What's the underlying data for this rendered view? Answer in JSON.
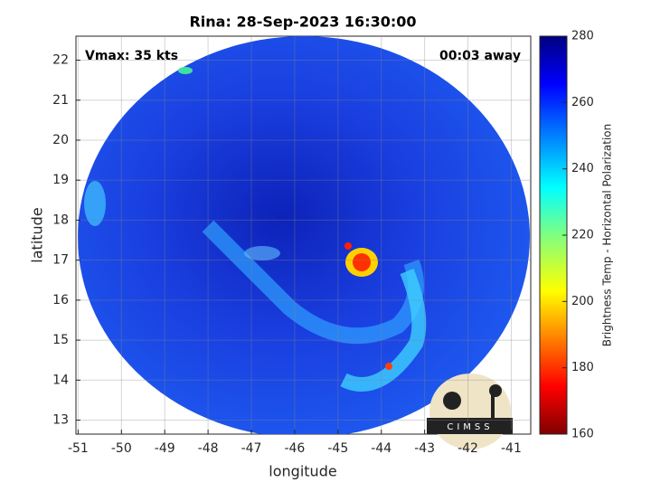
{
  "chart_data": {
    "type": "image",
    "title": "Rina: 28-Sep-2023 16:30:00",
    "annotations": [
      "Vmax: 35 kts",
      "00:03 away"
    ],
    "xlabel": "longitude",
    "ylabel": "latitude",
    "xlim": [
      -51.05,
      -40.55
    ],
    "xticks": [
      -51,
      -50,
      -49,
      -48,
      -47,
      -46,
      -45,
      -44,
      -43,
      -42,
      -41
    ],
    "ylim": [
      12.65,
      22.6
    ],
    "yticks": [
      13,
      14,
      15,
      16,
      17,
      18,
      19,
      20,
      21,
      22
    ],
    "grid": true,
    "colorbar": {
      "label": "Brightness Temp - Horizontal Polarization",
      "lim": [
        160,
        280
      ],
      "ticks": [
        160,
        180,
        200,
        220,
        240,
        260,
        280
      ]
    },
    "logo": "CIMSS"
  }
}
